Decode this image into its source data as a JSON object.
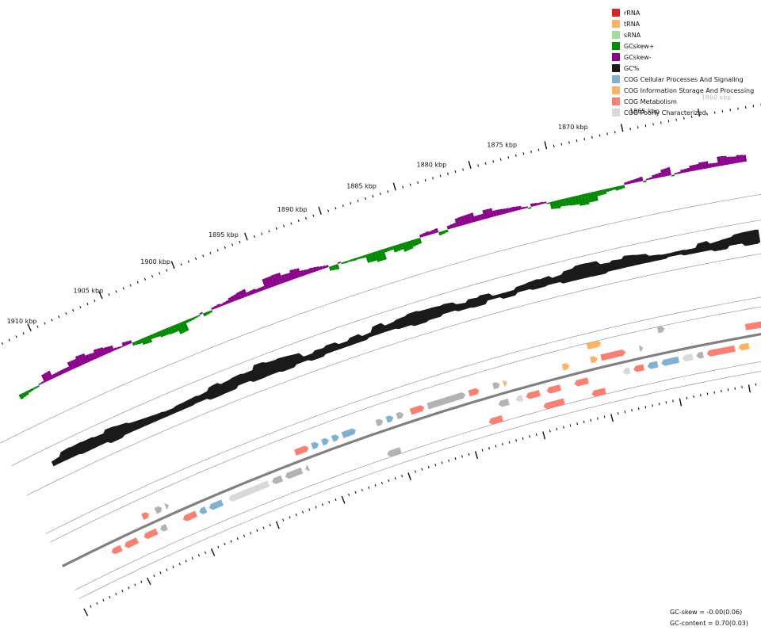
{
  "legend": {
    "items": [
      {
        "label": "rRNA",
        "color": "#d62728"
      },
      {
        "label": "tRNA",
        "color": "#fdb462"
      },
      {
        "label": "sRNA",
        "color": "#a6dba0"
      },
      {
        "label": "GCskew+",
        "color": "#008a00"
      },
      {
        "label": "GCskew-",
        "color": "#8b008b"
      },
      {
        "label": "GC%",
        "color": "#1a1a1a"
      },
      {
        "label": "COG Cellular Processes And Signaling",
        "color": "#80b1d3"
      },
      {
        "label": "COG Information Storage And Processing",
        "color": "#fdb462"
      },
      {
        "label": "COG Metabolism",
        "color": "#fb8072"
      },
      {
        "label": "COG Poorly Characterized",
        "color": "#d9d9d9"
      }
    ]
  },
  "ticks": {
    "unit": "kbp",
    "labels": [
      "1860 kbp",
      "1865 kbp",
      "1870 kbp",
      "1875 kbp",
      "1880 kbp",
      "1885 kbp",
      "1890 kbp",
      "1895 kbp",
      "1900 kbp",
      "1905 kbp",
      "1910 kbp"
    ]
  },
  "stats": {
    "gc_skew": "GC-skew = -0.00(0.06)",
    "gc_content": "GC-content = 0.70(0.03)"
  },
  "colors": {
    "skew_pos": "#008a00",
    "skew_neg": "#8b008b",
    "gc": "#1a1a1a",
    "cog_cell": "#80b1d3",
    "cog_info": "#fdb462",
    "cog_meta": "#fb8072",
    "cog_poor": "#d9d9d9",
    "unknown": "#b3b3b3",
    "backbone": "#808080",
    "grid": "#999999"
  }
}
